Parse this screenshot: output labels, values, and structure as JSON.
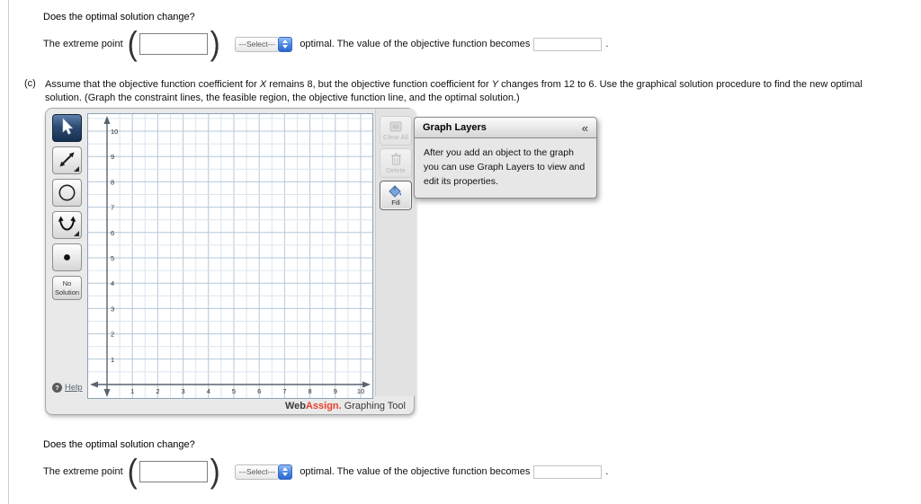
{
  "page": {
    "question": {
      "prompt": "Does the optimal solution change?",
      "prefix": "The extreme point",
      "point_value": "",
      "select_label": "---Select---",
      "suffix": "optimal. The value of the objective function becomes",
      "objective_value": "",
      "period": "."
    },
    "part_c": {
      "label": "(c)",
      "segment_1": "Assume that the objective function coefficient for ",
      "var_x": "X",
      "segment_2": " remains 8, but the objective function coefficient for ",
      "var_y": "Y",
      "segment_3": " changes from 12 to 6. Use the graphical solution procedure to find the new optimal solution. (Graph the constraint lines, the feasible region, the objective function line, and the optimal solution.)"
    }
  },
  "graph_tool": {
    "tools": [
      {
        "name": "select-pointer",
        "selected": true
      },
      {
        "name": "line",
        "selected": false
      },
      {
        "name": "circle",
        "selected": false
      },
      {
        "name": "parabola",
        "selected": false
      },
      {
        "name": "point",
        "selected": false
      },
      {
        "name": "no-solution",
        "selected": false,
        "label_line1": "No",
        "label_line2": "Solution"
      }
    ],
    "help_label": "Help",
    "actions": {
      "clear_all": "Clear All",
      "delete": "Delete",
      "fill": "Fill"
    },
    "brand": {
      "web": "Web",
      "assign": "Assign.",
      "suffix": "Graphing Tool"
    },
    "axes": {
      "x_ticks": [
        1,
        2,
        3,
        4,
        5,
        6,
        7,
        8,
        9,
        10
      ],
      "y_ticks": [
        1,
        2,
        3,
        4,
        5,
        6,
        7,
        8,
        9,
        10
      ],
      "x_range": [
        0,
        10.5
      ],
      "y_range": [
        0,
        10.5
      ],
      "grid_step": 0.5
    }
  },
  "graph_layers": {
    "title": "Graph Layers",
    "collapse_label": "«",
    "description": "After you add an object to the graph you can use Graph Layers to view and edit its properties."
  },
  "colors": {
    "grid_minor": "#dae5ef",
    "grid_major": "#b4c8db",
    "axis": "#59646f",
    "tick_text": "#2e2e2e",
    "brand_red": "#e8402a",
    "stepper_blue": "#4a86e0"
  }
}
